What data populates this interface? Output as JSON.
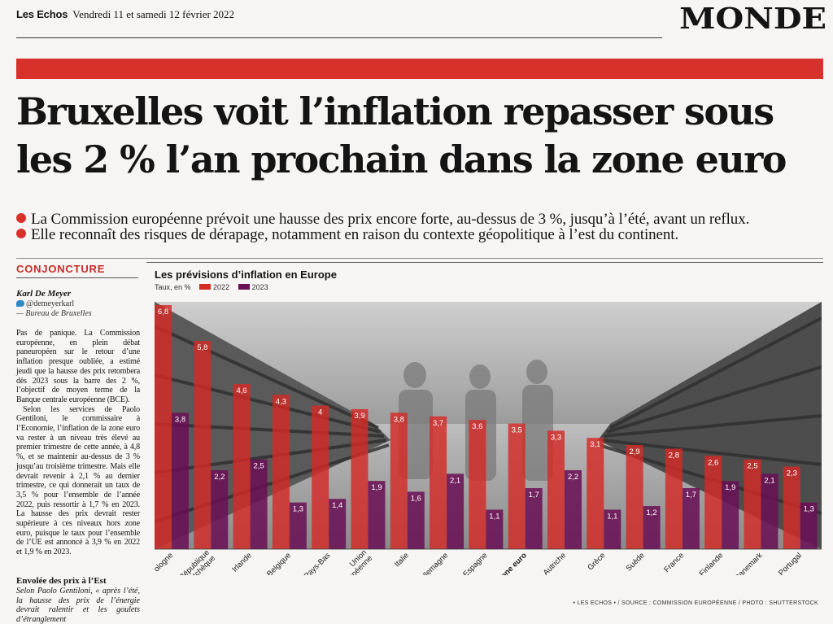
{
  "masthead": {
    "paper": "Les Echos",
    "date": "Vendredi 11 et samedi 12 février 2022"
  },
  "section": "MONDE",
  "headline": "Bruxelles voit l’inflation repasser sous les 2 % l’an prochain dans la zone euro",
  "leads": [
    "La Commission européenne prévoit une hausse des prix encore forte, au-dessus de 3 %, jusqu’à l’été, avant un reflux.",
    "Elle reconnaît des risques de dérapage, notamment en raison du contexte géopolitique à l’est du continent."
  ],
  "article": {
    "rubric": "CONJONCTURE",
    "author": "Karl De Meyer",
    "twitter": "@demeyerkarl",
    "bureau": "— Bureau de Bruxelles",
    "paragraphs": [
      "Pas de panique. La Commission européenne, en plein débat paneuropéen sur le retour d’une inflation presque oubliée, a estimé jeudi que la hausse des prix retombera dès 2023 sous la barre des 2 %, l’objectif de moyen terme de la Banque centrale européenne (BCE).",
      "Selon les services de Paolo Gentiloni, le commissaire à l’Economie, l’inflation de la zone euro va rester à un niveau très élevé au premier trimestre de cette année, à 4,8 %, et se maintenir au-dessus de 3 % jusqu’au troisième trimestre. Mais elle devrait revenir à 2,1 % au dernier trimestre, ce qui donnerait un taux de 3,5 % pour l’ensemble de l’année 2022, puis ressortir à 1,7 % en 2023. La hausse des prix devrait rester supérieure à ces niveaux hors zone euro, puisque le taux pour l’ensemble de l’UE est annoncé à 3,9 % en 2022 et 1,9 % en 2023."
    ],
    "subheading": "Envolée des prix à l’Est",
    "tail": "Selon Paolo Gentiloni, « après l’été, la hausse des prix de l’énergie devrait ralentir et les goulets d’étranglement"
  },
  "colors": {
    "accent": "#d8312c",
    "bar_2022": "#d42a26",
    "bar_2023": "#6a0f55"
  },
  "chart_data": {
    "type": "bar",
    "title": "Les prévisions d’inflation en Europe",
    "unit_label": "Taux, en %",
    "categories": [
      "Pologne",
      "République tchèque",
      "Irlande",
      "Belgique",
      "Pays-Bas",
      "Union européenne",
      "Italie",
      "Allemagne",
      "Espagne",
      "Zone euro",
      "Autriche",
      "Grèce",
      "Suède",
      "France",
      "Finlande",
      "Danemark",
      "Portugal"
    ],
    "category_labels": [
      "Pologne",
      "République\ntchèque",
      "Irlande",
      "Belgique",
      "Pays-Bas",
      "Union\neuropéenne",
      "Italie",
      "Allemagne",
      "Espagne",
      "Zone euro",
      "Autriche",
      "Grèce",
      "Suède",
      "France",
      "Finlande",
      "Danemark",
      "Portugal"
    ],
    "highlight": "Zone euro",
    "series": [
      {
        "name": "2022",
        "values": [
          6.8,
          5.8,
          4.6,
          4.3,
          4.0,
          3.9,
          3.8,
          3.7,
          3.6,
          3.5,
          3.3,
          3.1,
          2.9,
          2.8,
          2.6,
          2.5,
          2.3
        ],
        "labels": [
          "6,8",
          "5,8",
          "4,6",
          "4,3",
          "4",
          "3,9",
          "3,8",
          "3,7",
          "3,6",
          "3,5",
          "3,3",
          "3,1",
          "2,9",
          "2,8",
          "2,6",
          "2,5",
          "2,3"
        ]
      },
      {
        "name": "2023",
        "values": [
          3.8,
          2.2,
          2.5,
          1.3,
          1.4,
          1.9,
          1.6,
          2.1,
          1.1,
          1.7,
          2.2,
          1.1,
          1.2,
          1.7,
          1.9,
          2.1,
          1.3
        ],
        "labels": [
          "3,8",
          "2,2",
          "2,5",
          "1,3",
          "1,4",
          "1,9",
          "1,6",
          "2,1",
          "1,1",
          "1,7",
          "2,2",
          "1,1",
          "1,2",
          "1,7",
          "1,9",
          "2,1",
          "1,3"
        ]
      }
    ],
    "ylim": [
      0,
      6.8
    ],
    "grid": false,
    "legend_position": "top-left"
  },
  "credit": "• LES ECHOS • / SOURCE : COMMISSION EUROPÉENNE / PHOTO : SHUTTERSTOCK"
}
